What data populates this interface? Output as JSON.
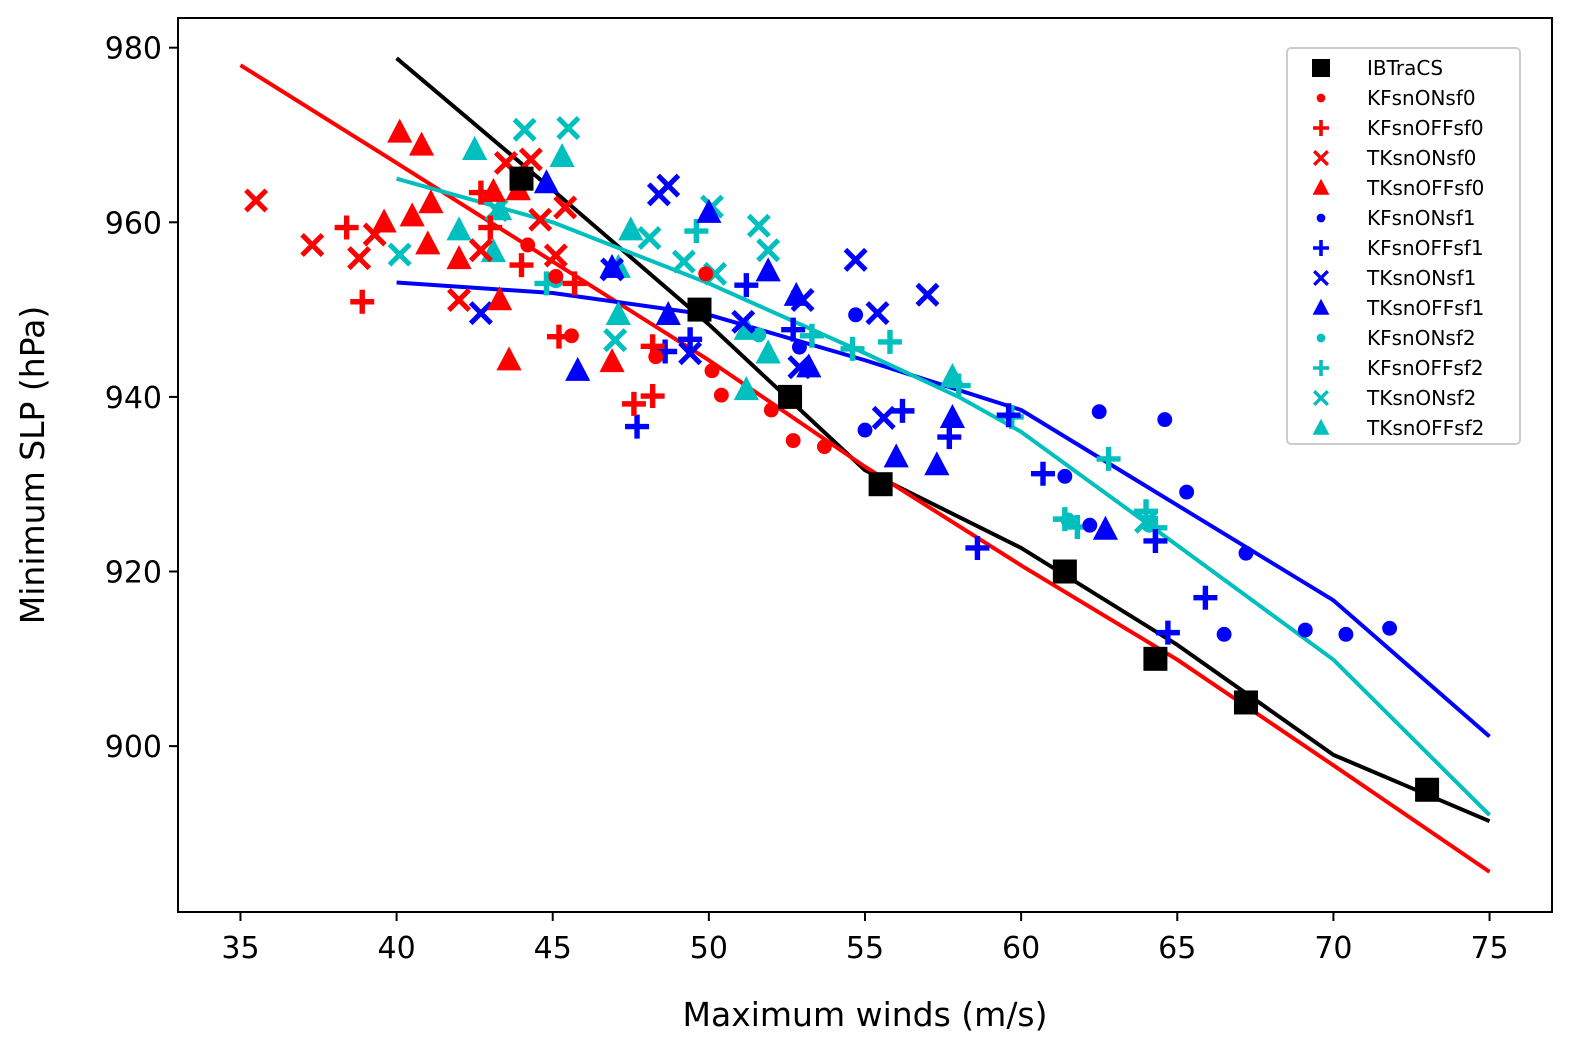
{
  "chart_data": {
    "type": "scatter",
    "title": "",
    "xlabel": "Maximum winds (m/s)",
    "ylabel": "Minimum SLP (hPa)",
    "xlim": [
      33.0,
      77.0
    ],
    "ylim": [
      881,
      983.4
    ],
    "xticks": [
      35,
      40,
      45,
      50,
      55,
      60,
      65,
      70,
      75
    ],
    "yticks": [
      900,
      920,
      940,
      960,
      980
    ],
    "grid": false,
    "legend_position": "top-right",
    "series": [
      {
        "name": "IBTraCS",
        "color": "#000000",
        "marker": "square",
        "points": [
          [
            44,
            965
          ],
          [
            49.7,
            950
          ],
          [
            52.6,
            940
          ],
          [
            55.5,
            930
          ],
          [
            61.4,
            920
          ],
          [
            64.3,
            910
          ],
          [
            67.2,
            905
          ],
          [
            73,
            895
          ]
        ]
      },
      {
        "name": "KFsnONsf0",
        "color": "#ff0000",
        "marker": "dot",
        "points": [
          [
            45.6,
            947
          ],
          [
            44.2,
            957.4
          ],
          [
            45.1,
            953.8
          ],
          [
            50.1,
            943
          ],
          [
            50.4,
            940.2
          ],
          [
            52.0,
            938.5
          ],
          [
            52.7,
            935
          ],
          [
            53.7,
            934.3
          ],
          [
            48.3,
            944.6
          ],
          [
            49.9,
            954.1
          ]
        ]
      },
      {
        "name": "KFsnOFFsf0",
        "color": "#ff0000",
        "marker": "plus",
        "points": [
          [
            38.4,
            959.4
          ],
          [
            38.9,
            950.9
          ],
          [
            42.7,
            963.4
          ],
          [
            44.0,
            955.1
          ],
          [
            45.7,
            953
          ],
          [
            45.2,
            946.9
          ],
          [
            47.6,
            939.2
          ],
          [
            48.2,
            940.1
          ],
          [
            48.2,
            945.8
          ],
          [
            43,
            959.4
          ]
        ]
      },
      {
        "name": "TKsnONsf0",
        "color": "#ff0000",
        "marker": "x",
        "points": [
          [
            35.5,
            962.5
          ],
          [
            37.3,
            957.4
          ],
          [
            38.8,
            955.9
          ],
          [
            39.3,
            958.6
          ],
          [
            42.0,
            951.1
          ],
          [
            43.5,
            966.8
          ],
          [
            44.3,
            967.2
          ],
          [
            44.6,
            960.3
          ],
          [
            45.1,
            956.2
          ],
          [
            45.4,
            961.7
          ],
          [
            42.7,
            956.8
          ]
        ]
      },
      {
        "name": "TKsnOFFsf0",
        "color": "#ff0000",
        "marker": "triangle",
        "points": [
          [
            40.1,
            970.3
          ],
          [
            40.8,
            968.8
          ],
          [
            39.6,
            960
          ],
          [
            40.5,
            960.7
          ],
          [
            41.1,
            962.2
          ],
          [
            41.0,
            957.5
          ],
          [
            42.0,
            955.8
          ],
          [
            43.3,
            951.1
          ],
          [
            43.6,
            944.2
          ],
          [
            46.9,
            944
          ],
          [
            43.1,
            963.5
          ],
          [
            43.9,
            963.7
          ]
        ]
      },
      {
        "name": "KFsnONsf1",
        "color": "#0000ff",
        "marker": "dot",
        "points": [
          [
            54.7,
            949.4
          ],
          [
            55.0,
            936.2
          ],
          [
            62.5,
            938.3
          ],
          [
            64.6,
            937.4
          ],
          [
            65.3,
            929.1
          ],
          [
            61.4,
            930.9
          ],
          [
            62.2,
            925.3
          ],
          [
            67.2,
            922.1
          ],
          [
            66.5,
            912.8
          ],
          [
            69.1,
            913.3
          ],
          [
            70.4,
            912.8
          ],
          [
            71.8,
            913.5
          ],
          [
            52.9,
            945.7
          ]
        ]
      },
      {
        "name": "KFsnOFFsf1",
        "color": "#0000ff",
        "marker": "plus",
        "points": [
          [
            47.7,
            936.6
          ],
          [
            48.6,
            945.2
          ],
          [
            49.4,
            946.6
          ],
          [
            51.2,
            952.8
          ],
          [
            52.7,
            947.7
          ],
          [
            56.2,
            938.4
          ],
          [
            57.7,
            935.4
          ],
          [
            58.6,
            922.7
          ],
          [
            59.6,
            937.9
          ],
          [
            60.7,
            931.2
          ],
          [
            64.3,
            923.5
          ],
          [
            65.9,
            917
          ],
          [
            64.7,
            913
          ]
        ]
      },
      {
        "name": "TKsnONsf1",
        "color": "#0000ff",
        "marker": "x",
        "points": [
          [
            42.7,
            949.6
          ],
          [
            48.4,
            963.2
          ],
          [
            48.7,
            964.2
          ],
          [
            49.4,
            945
          ],
          [
            51.1,
            948.6
          ],
          [
            53.0,
            951.1
          ],
          [
            54.7,
            955.7
          ],
          [
            55.4,
            949.6
          ],
          [
            55.6,
            937.6
          ],
          [
            57.0,
            951.7
          ],
          [
            52.9,
            943.4
          ],
          [
            46.9,
            954.6
          ]
        ]
      },
      {
        "name": "TKsnOFFsf1",
        "color": "#0000ff",
        "marker": "triangle",
        "points": [
          [
            44.8,
            964.5
          ],
          [
            45.8,
            943
          ],
          [
            46.9,
            954.8
          ],
          [
            48.7,
            949.4
          ],
          [
            50.0,
            961.1
          ],
          [
            51.9,
            954.4
          ],
          [
            52.8,
            951.6
          ],
          [
            53.2,
            943.4
          ],
          [
            56.0,
            933.1
          ],
          [
            57.3,
            932.2
          ],
          [
            57.8,
            937.6
          ],
          [
            62.7,
            924.8
          ]
        ]
      },
      {
        "name": "KFsnONsf2",
        "color": "#00bfbf",
        "marker": "dot",
        "points": [
          [
            45.1,
            953.3
          ],
          [
            51.6,
            947.1
          ],
          [
            61.5,
            925.9
          ],
          [
            64.1,
            925.3
          ]
        ]
      },
      {
        "name": "KFsnOFFsf2",
        "color": "#00bfbf",
        "marker": "plus",
        "points": [
          [
            49.6,
            959
          ],
          [
            53.3,
            947
          ],
          [
            54.6,
            945.5
          ],
          [
            55.8,
            946.3
          ],
          [
            58.0,
            941.3
          ],
          [
            59.7,
            937.7
          ],
          [
            62.8,
            932.9
          ],
          [
            61.4,
            926
          ],
          [
            61.8,
            925.1
          ],
          [
            64.0,
            926.9
          ],
          [
            64.3,
            925
          ],
          [
            44.8,
            953
          ]
        ]
      },
      {
        "name": "TKsnONsf2",
        "color": "#00bfbf",
        "marker": "x",
        "points": [
          [
            40.1,
            956.3
          ],
          [
            44.1,
            970.6
          ],
          [
            45.5,
            970.8
          ],
          [
            43.2,
            961.4
          ],
          [
            47.0,
            946.5
          ],
          [
            48.1,
            958.2
          ],
          [
            49.2,
            955.5
          ],
          [
            50.1,
            961.8
          ],
          [
            50.2,
            954.1
          ],
          [
            51.6,
            959.6
          ],
          [
            51.9,
            956.8
          ],
          [
            64.0,
            925.7
          ]
        ]
      },
      {
        "name": "TKsnOFFsf2",
        "color": "#00bfbf",
        "marker": "triangle",
        "points": [
          [
            42.5,
            968.3
          ],
          [
            45.3,
            967.5
          ],
          [
            42.0,
            959.1
          ],
          [
            43.1,
            956.6
          ],
          [
            43.3,
            961.4
          ],
          [
            47.5,
            959.1
          ],
          [
            47.1,
            954.8
          ],
          [
            47.1,
            949.4
          ],
          [
            51.2,
            940.8
          ],
          [
            51.9,
            945
          ],
          [
            57.8,
            942.3
          ],
          [
            51.2,
            947.7
          ]
        ]
      }
    ],
    "fit_lines": [
      {
        "name": "IBTraCS fit",
        "color": "#000000",
        "points": [
          [
            40,
            978.8
          ],
          [
            45,
            963.7
          ],
          [
            50,
            948.3
          ],
          [
            55,
            931.6
          ],
          [
            60,
            922.7
          ],
          [
            65,
            911.6
          ],
          [
            70,
            899
          ],
          [
            75,
            891.4
          ]
        ]
      },
      {
        "name": "sf0 fit",
        "color": "#ff0000",
        "points": [
          [
            35,
            978
          ],
          [
            40,
            966.8
          ],
          [
            45,
            955.5
          ],
          [
            50,
            944.2
          ],
          [
            55,
            932
          ],
          [
            60,
            920.7
          ],
          [
            65,
            909.9
          ],
          [
            70,
            897.8
          ],
          [
            75,
            885.6
          ]
        ]
      },
      {
        "name": "sf1 fit",
        "color": "#0000ff",
        "points": [
          [
            40,
            953.1
          ],
          [
            45,
            951.9
          ],
          [
            50,
            949.4
          ],
          [
            55,
            944.2
          ],
          [
            60,
            938.5
          ],
          [
            65,
            927.6
          ],
          [
            70,
            916.7
          ],
          [
            75,
            901.1
          ]
        ]
      },
      {
        "name": "sf2 fit",
        "color": "#00bfbf",
        "points": [
          [
            40,
            965
          ],
          [
            45,
            960
          ],
          [
            50,
            953
          ],
          [
            55,
            945
          ],
          [
            58,
            940
          ],
          [
            60,
            936
          ],
          [
            65,
            923
          ],
          [
            70,
            909.9
          ],
          [
            75,
            892.1
          ]
        ]
      }
    ]
  }
}
